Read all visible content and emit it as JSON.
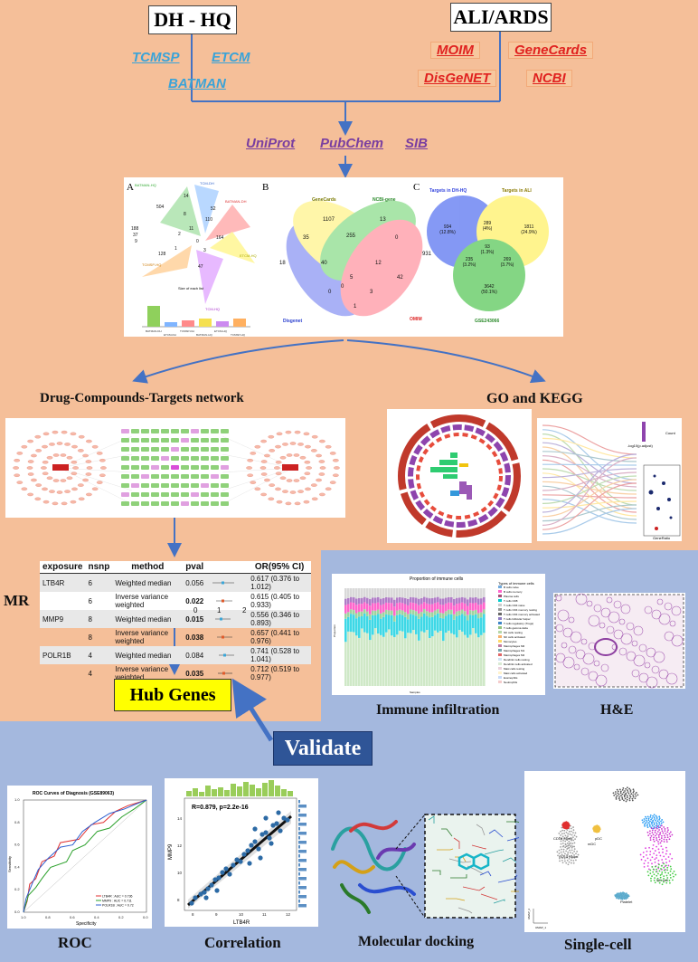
{
  "boxes": {
    "left": "DH - HQ",
    "right": "ALI/ARDS"
  },
  "dh_databases": [
    "TCMSP",
    "ETCM",
    "BATMAN"
  ],
  "ali_databases": [
    "MOIM",
    "GeneCards",
    "DisGeNET",
    "NCBI"
  ],
  "id_databases": [
    "UniProt",
    "PubChem",
    "SIB"
  ],
  "venn": {
    "panel_a": {
      "letter": "A",
      "set_names": [
        "BATMAN-HQ",
        "TCM-DH",
        "BATMAN-DH",
        "ETCM-HQ",
        "TCMSP-HQ",
        "TCM-HQ"
      ],
      "numbers": [
        "504",
        "14",
        "52",
        "110",
        "188",
        "37",
        "9",
        "8",
        "11",
        "164",
        "128",
        "47",
        "1",
        "0",
        "2",
        "3"
      ],
      "caption": "Size of each list",
      "bar_labels": [
        "BATMAN-DH",
        "ETCM-DH",
        "TCMSP-DH",
        "BATMAN-HQ",
        "ETCM-HQ",
        "TCMSP-HQ"
      ]
    },
    "panel_b": {
      "letter": "B",
      "set_names": [
        "GeneCards",
        "NCBI-gene",
        "Disgenet",
        "OMIM"
      ],
      "numbers": [
        "1107",
        "13",
        "35",
        "255",
        "0",
        "931",
        "18",
        "40",
        "12",
        "5",
        "42",
        "0",
        "3",
        "0",
        "1"
      ]
    },
    "panel_c": {
      "letter": "C",
      "set_names": [
        "Targets in DH-HQ",
        "Targets in ALI",
        "GSE243066"
      ],
      "numbers": [
        "934",
        "(12.8%)",
        "289",
        "(4%)",
        "1811",
        "(24.9%)",
        "93",
        "(1.3%)",
        "235",
        "(3.2%)",
        "269",
        "(3.7%)",
        "3642",
        "(50.1%)"
      ]
    }
  },
  "headings": {
    "network": "Drug-Compounds-Targets network",
    "go_kegg": "GO and KEGG",
    "mr": "MR",
    "hub": "Hub Genes",
    "immune": "Immune infiltration",
    "he": "H&E",
    "validate": "Validate",
    "roc": "ROC",
    "correlation": "Correlation",
    "docking": "Molecular docking",
    "single_cell": "Single-cell"
  },
  "mr_table": {
    "headers": [
      "exposure",
      "nsnp",
      "method",
      "pval",
      "OR(95% CI)"
    ],
    "rows": [
      {
        "exposure": "LTB4R",
        "nsnp": "6",
        "method": "Weighted median",
        "pval": "0.056",
        "or": "0.617 (0.376 to 1.012)"
      },
      {
        "exposure": "",
        "nsnp": "6",
        "method": "Inverse variance weighted",
        "pval": "0.022",
        "or": "0.615 (0.405 to 0.933)"
      },
      {
        "exposure": "MMP9",
        "nsnp": "8",
        "method": "Weighted median",
        "pval": "0.015",
        "or": "0.556 (0.346 to 0.893)"
      },
      {
        "exposure": "",
        "nsnp": "8",
        "method": "Inverse variance weighted",
        "pval": "0.038",
        "or": "0.657 (0.441 to 0.976)"
      },
      {
        "exposure": "POLR1B",
        "nsnp": "4",
        "method": "Weighted median",
        "pval": "0.084",
        "or": "0.741 (0.528 to 1.041)"
      },
      {
        "exposure": "",
        "nsnp": "4",
        "method": "Inverse variance weighted",
        "pval": "0.035",
        "or": "0.712 (0.519 to 0.977)"
      }
    ],
    "axis_ticks": [
      "0",
      "1",
      "2"
    ]
  },
  "immune_panel": {
    "title": "Proportion of immune cells",
    "ylabel": "Proportion",
    "xlabel": "Samples",
    "legend_title": "Types of immune cells",
    "legend": [
      "B cells naive",
      "B cells memory",
      "Plasma cells",
      "T cells CD8",
      "T cells CD4 naive",
      "T cells CD4 memory resting",
      "T cells CD4 memory activated",
      "T cells follicular helper",
      "T cells regulatory (Tregs)",
      "T cells gamma delta",
      "NK cells resting",
      "NK cells activated",
      "Monocytes",
      "Macrophages M0",
      "Macrophages M1",
      "Macrophages M2",
      "Dendritic cells resting",
      "Dendritic cells activated",
      "Mast cells resting",
      "Mast cells activated",
      "Eosinophils",
      "Neutrophils"
    ],
    "legend_colors": [
      "#6fa8dc",
      "#ff66cc",
      "#a64d79",
      "#00cccc",
      "#cccccc",
      "#999999",
      "#666666",
      "#8e7cc3",
      "#3d85c6",
      "#93c47d",
      "#b6d7a8",
      "#f6b26b",
      "#ffd966",
      "#c27ba0",
      "#76a5af",
      "#e06666",
      "#cfe2f3",
      "#d9ead3",
      "#ead1dc",
      "#fff2cc",
      "#c9daf8",
      "#f4cccc"
    ]
  },
  "roc": {
    "title": "ROC Curves of Diagnosis (GSE89063)",
    "xlabel": "Specificity",
    "ylabel": "Sensitivity",
    "legend": [
      "LTB4R : AUC = 0.736",
      "MMP9 : AUC = 0.711",
      "POLR1B : AUC = 0.72"
    ],
    "colors": [
      "#e03030",
      "#2aa02a",
      "#2d5fd0"
    ],
    "x_ticks": [
      "1.0",
      "0.8",
      "0.6",
      "0.4",
      "0.2",
      "0.0"
    ],
    "y_ticks": [
      "0.0",
      "0.2",
      "0.4",
      "0.6",
      "0.8",
      "1.0"
    ]
  },
  "correlation": {
    "annotation": "R=0.879, p=2.2e-16",
    "xlabel": "LTB4R",
    "ylabel": "MMP9",
    "x_ticks": [
      "8",
      "9",
      "10",
      "11",
      "12"
    ],
    "y_ticks": [
      "8",
      "10",
      "12",
      "14"
    ]
  },
  "go_panel": {
    "legend_title": "-log10(p.adjust)",
    "legend_count": "Count",
    "x_label": "GeneRatio"
  },
  "single_cell": {
    "labels": [
      "CD16 Mono",
      "pDC",
      "mDC",
      "CD14 Mono",
      "NK cell",
      "Platelet"
    ],
    "umap_x": "UMAP_1",
    "umap_y": "UMAP_2"
  },
  "colors": {
    "peach": "#f5bf99",
    "blue_bg": "#a4b8de",
    "validate": "#2f5597",
    "hub": "#ffff00",
    "arrow": "#4472c4"
  }
}
